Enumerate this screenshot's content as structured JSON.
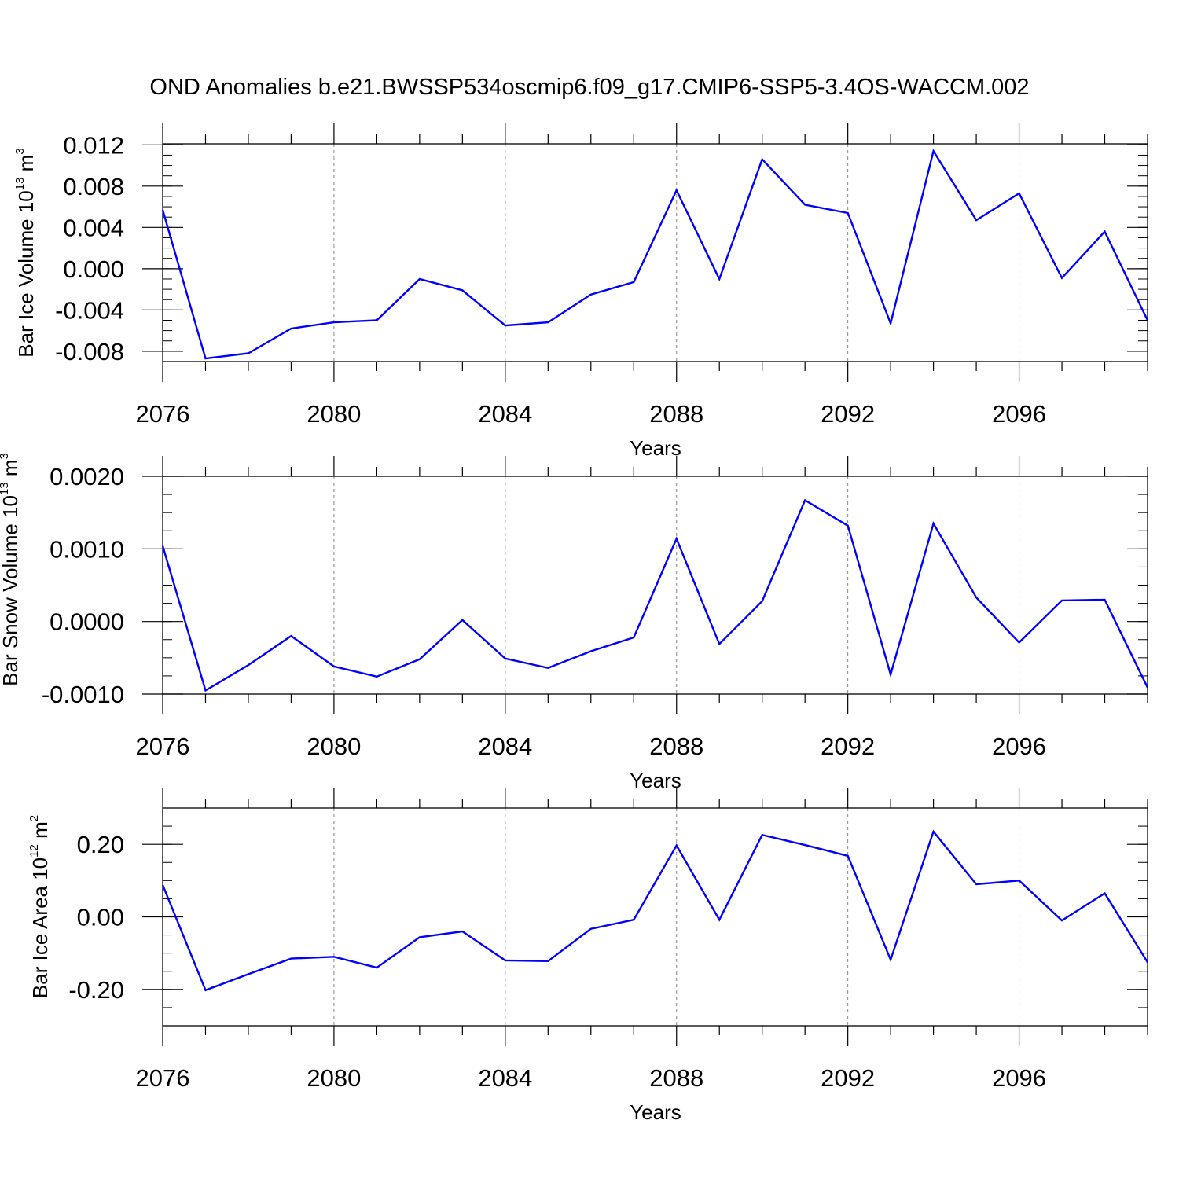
{
  "title": "OND Anomalies b.e21.BWSSP534oscmip6.f09_g17.CMIP6-SSP5-3.4OS-WACCM.002",
  "line_color": "#0000ff",
  "chart_data": [
    {
      "type": "line",
      "ylabel": "Bar Ice Volume 10",
      "ylabel_exp": "13",
      "ylabel_unit": " m",
      "ylabel_unit_exp": "3",
      "xlabel": "Years",
      "xlim": [
        2076,
        2099
      ],
      "ylim": [
        -0.009,
        0.0121
      ],
      "x_ticks": [
        "2076",
        "2080",
        "2084",
        "2088",
        "2092",
        "2096"
      ],
      "y_ticks": [
        "0.012",
        "0.008",
        "0.004",
        "0.000",
        "-0.004",
        "-0.008"
      ],
      "series": [
        {
          "x": [
            2076,
            2077,
            2078,
            2079,
            2080,
            2081,
            2082,
            2083,
            2084,
            2085,
            2086,
            2087,
            2088,
            2089,
            2090,
            2091,
            2092,
            2093,
            2094,
            2095,
            2096,
            2097,
            2098,
            2099
          ],
          "values": [
            0.0057,
            -0.0087,
            -0.0082,
            -0.0058,
            -0.0052,
            -0.005,
            -0.001,
            -0.0021,
            -0.0055,
            -0.0052,
            -0.0025,
            -0.0013,
            0.0076,
            -0.001,
            0.0106,
            0.0062,
            0.0054,
            -0.0053,
            0.0114,
            0.0047,
            0.0073,
            -0.0009,
            0.0036,
            -0.005
          ]
        }
      ]
    },
    {
      "type": "line",
      "ylabel": "Bar Snow Volume 10",
      "ylabel_exp": "13",
      "ylabel_unit": " m",
      "ylabel_unit_exp": "3",
      "xlabel": "Years",
      "xlim": [
        2076,
        2099
      ],
      "ylim": [
        -0.001,
        0.002
      ],
      "x_ticks": [
        "2076",
        "2080",
        "2084",
        "2088",
        "2092",
        "2096"
      ],
      "y_ticks": [
        "0.0020",
        "0.0010",
        "0.0000",
        "-0.0010"
      ],
      "series": [
        {
          "x": [
            2076,
            2077,
            2078,
            2079,
            2080,
            2081,
            2082,
            2083,
            2084,
            2085,
            2086,
            2087,
            2088,
            2089,
            2090,
            2091,
            2092,
            2093,
            2094,
            2095,
            2096,
            2097,
            2098,
            2099
          ],
          "values": [
            0.00104,
            -0.00095,
            -0.0006,
            -0.0002,
            -0.00062,
            -0.00076,
            -0.00052,
            2e-05,
            -0.00051,
            -0.00064,
            -0.00041,
            -0.00022,
            0.00114,
            -0.00031,
            0.00028,
            0.00167,
            0.00132,
            -0.00073,
            0.00135,
            0.00033,
            -0.00029,
            0.00029,
            0.0003,
            -0.00091
          ]
        }
      ]
    },
    {
      "type": "line",
      "ylabel": "Bar Ice Area 10",
      "ylabel_exp": "12",
      "ylabel_unit": " m",
      "ylabel_unit_exp": "2",
      "xlabel": "Years",
      "xlim": [
        2076,
        2099
      ],
      "ylim": [
        -0.3,
        0.3
      ],
      "x_ticks": [
        "2076",
        "2080",
        "2084",
        "2088",
        "2092",
        "2096"
      ],
      "y_ticks": [
        "0.20",
        "0.00",
        "-0.20"
      ],
      "series": [
        {
          "x": [
            2076,
            2077,
            2078,
            2079,
            2080,
            2081,
            2082,
            2083,
            2084,
            2085,
            2086,
            2087,
            2088,
            2089,
            2090,
            2091,
            2092,
            2093,
            2094,
            2095,
            2096,
            2097,
            2098,
            2099
          ],
          "values": [
            0.088,
            -0.202,
            -0.158,
            -0.115,
            -0.11,
            -0.14,
            -0.056,
            -0.04,
            -0.12,
            -0.122,
            -0.033,
            -0.008,
            0.197,
            -0.008,
            0.226,
            0.198,
            0.168,
            -0.118,
            0.235,
            0.09,
            0.1,
            -0.01,
            0.065,
            -0.125
          ]
        }
      ]
    }
  ]
}
